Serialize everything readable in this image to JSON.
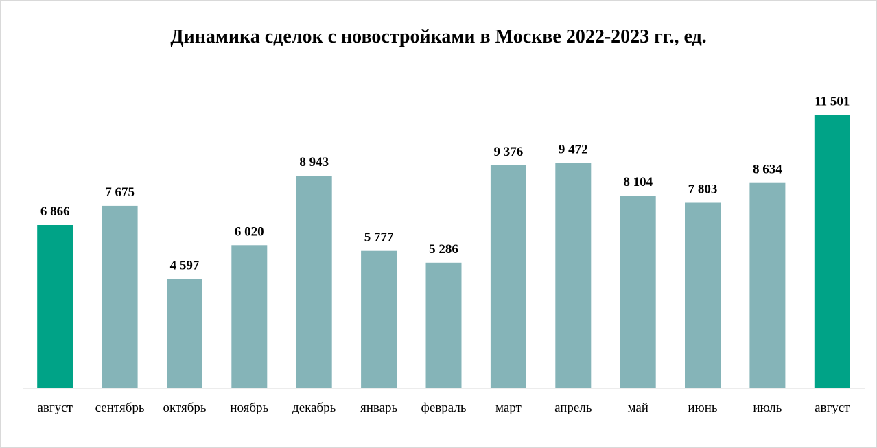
{
  "chart_data": {
    "type": "bar",
    "title": "Динамика сделок с новостройками в Москве 2022-2023 гг., ед.",
    "categories": [
      "август",
      "сентябрь",
      "октябрь",
      "ноябрь",
      "декабрь",
      "январь",
      "февраль",
      "март",
      "апрель",
      "май",
      "июнь",
      "июль",
      "август"
    ],
    "values": [
      6866,
      7675,
      4597,
      6020,
      8943,
      5777,
      5286,
      9376,
      9472,
      8104,
      7803,
      8634,
      11501
    ],
    "value_labels": [
      "6 866",
      "7 675",
      "4 597",
      "6 020",
      "8 943",
      "5 777",
      "5 286",
      "9 376",
      "9 472",
      "8 104",
      "7 803",
      "8 634",
      "11 501"
    ],
    "highlighted": [
      true,
      false,
      false,
      false,
      false,
      false,
      false,
      false,
      false,
      false,
      false,
      false,
      true
    ],
    "xlabel": "",
    "ylabel": "",
    "ylim": [
      0,
      12000
    ],
    "grid": false,
    "legend": "none",
    "colors": {
      "bar": "#85b4b8",
      "highlight": "#00a387",
      "axis": "#d9d9d9"
    }
  }
}
